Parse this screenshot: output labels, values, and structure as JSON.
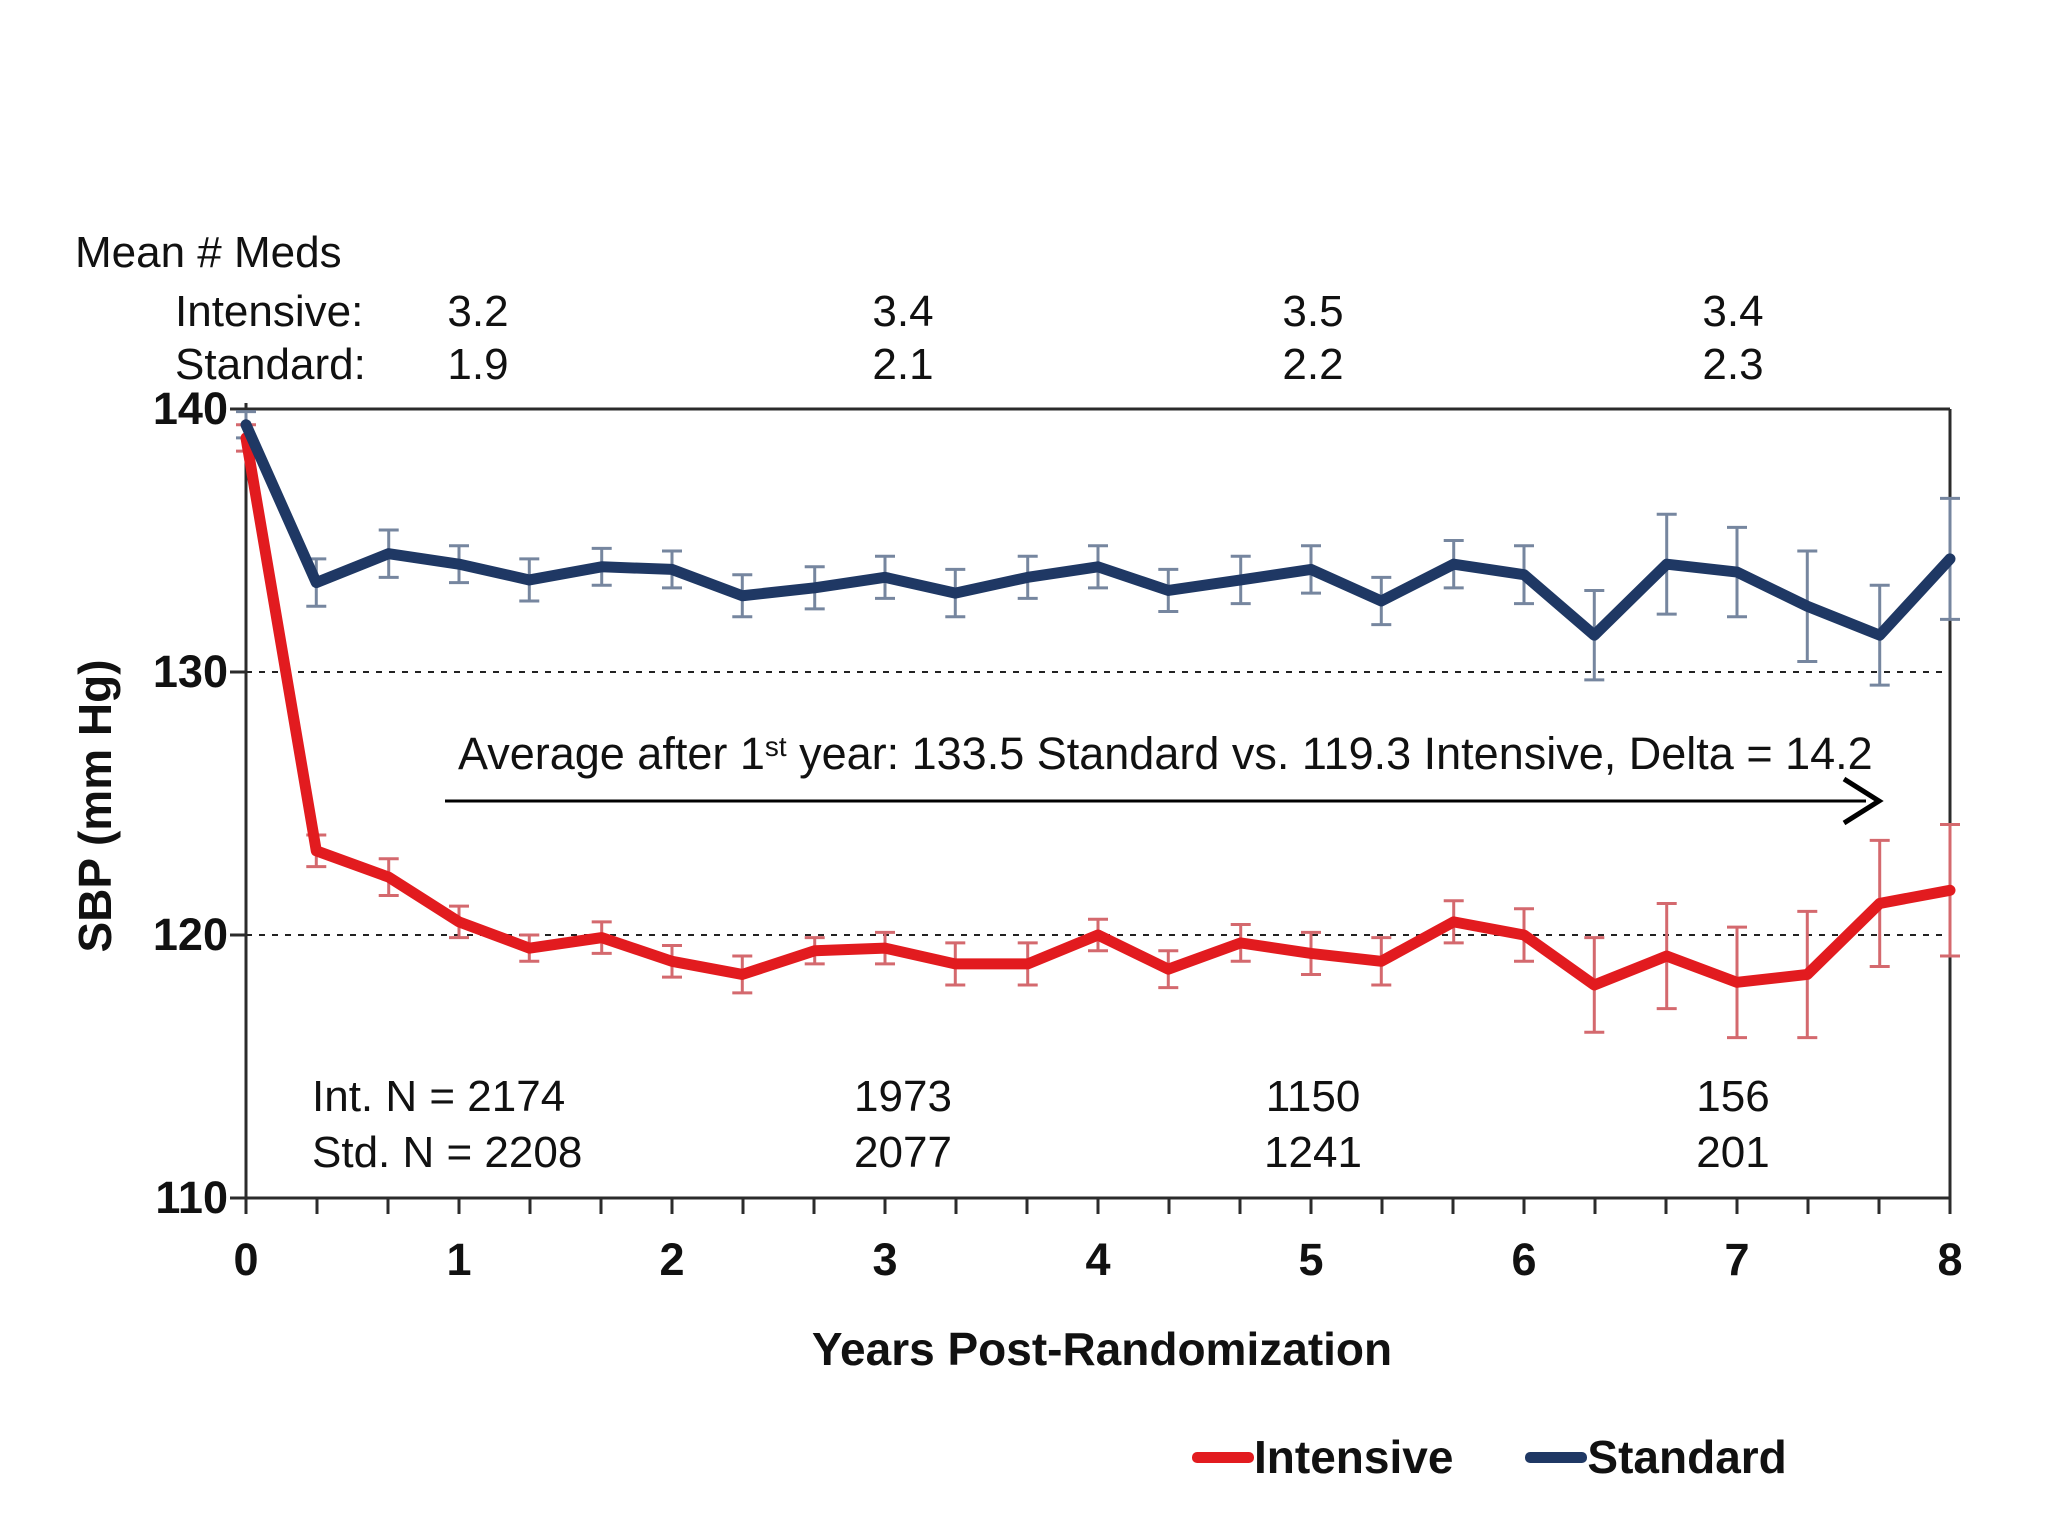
{
  "meds": {
    "title": "Mean # Meds",
    "rows": [
      {
        "label": "Intensive:",
        "values": [
          "3.2",
          "3.4",
          "3.5",
          "3.4"
        ]
      },
      {
        "label": "Standard:",
        "values": [
          "1.9",
          "2.1",
          "2.2",
          "2.3"
        ]
      }
    ]
  },
  "axes": {
    "y": {
      "label": "SBP (mm Hg)",
      "ticks": [
        "140",
        "130",
        "120",
        "110"
      ],
      "min": 110,
      "max": 140,
      "gridlines": [
        130,
        120
      ]
    },
    "x": {
      "label": "Years Post-Randomization",
      "ticks": [
        "0",
        "1",
        "2",
        "3",
        "4",
        "5",
        "6",
        "7",
        "8"
      ],
      "min": 0,
      "max": 8,
      "minor_per_year": 3
    }
  },
  "annotation": {
    "prefix": "Average after 1",
    "sup": "st",
    "suffix": " year: 133.5 Standard vs. 119.3 Intensive, Delta = 14.2"
  },
  "counts": {
    "rows": [
      {
        "label": "Int. N = 2174",
        "values": [
          "1973",
          "1150",
          "156"
        ]
      },
      {
        "label": "Std. N = 2208",
        "values": [
          "2077",
          "1241",
          "201"
        ]
      }
    ]
  },
  "legend": {
    "items": [
      {
        "label": "Intensive",
        "color": "#e21b1f"
      },
      {
        "label": "Standard",
        "color": "#1f3864"
      }
    ]
  },
  "colors": {
    "intensive_line": "#e21b1f",
    "standard_line": "#1f3864",
    "intensive_error": "#d4696e",
    "standard_error": "#77880",
    "axis": "#2b2b2b",
    "gridline": "#222222",
    "text": "#111111"
  },
  "chart_data": {
    "type": "line",
    "title": "",
    "xlabel": "Years Post-Randomization",
    "ylabel": "SBP (mm Hg)",
    "xlim": [
      0,
      8
    ],
    "ylim": [
      110,
      140
    ],
    "grid_y": [
      130,
      120
    ],
    "legend_position": "bottom-right",
    "x": [
      0,
      0.33,
      0.67,
      1,
      1.33,
      1.67,
      2,
      2.33,
      2.67,
      3,
      3.33,
      3.67,
      4,
      4.33,
      4.67,
      5,
      5.33,
      5.67,
      6,
      6.33,
      6.67,
      7,
      7.33,
      7.67,
      8
    ],
    "series": [
      {
        "name": "Intensive",
        "color": "#e21b1f",
        "err_color": "#d4696e",
        "values": [
          138.9,
          123.2,
          122.2,
          120.5,
          119.5,
          119.9,
          119.0,
          118.5,
          119.4,
          119.5,
          118.9,
          118.9,
          120.0,
          118.7,
          119.7,
          119.3,
          119.0,
          120.5,
          120.0,
          118.1,
          119.2,
          118.2,
          118.5,
          121.2,
          121.7
        ],
        "errors": [
          0.5,
          0.6,
          0.7,
          0.6,
          0.5,
          0.6,
          0.6,
          0.7,
          0.5,
          0.6,
          0.8,
          0.8,
          0.6,
          0.7,
          0.7,
          0.8,
          0.9,
          0.8,
          1.0,
          1.8,
          2.0,
          2.1,
          2.4,
          2.4,
          2.5
        ]
      },
      {
        "name": "Standard",
        "color": "#1f3864",
        "err_color": "#76869f",
        "values": [
          139.4,
          133.4,
          134.5,
          134.1,
          133.5,
          134.0,
          133.9,
          132.9,
          133.2,
          133.6,
          133.0,
          133.6,
          134.0,
          133.1,
          133.5,
          133.9,
          132.7,
          134.1,
          133.7,
          131.4,
          134.1,
          133.8,
          132.5,
          131.4,
          134.3
        ],
        "errors": [
          0.5,
          0.9,
          0.9,
          0.7,
          0.8,
          0.7,
          0.7,
          0.8,
          0.8,
          0.8,
          0.9,
          0.8,
          0.8,
          0.8,
          0.9,
          0.9,
          0.9,
          0.9,
          1.1,
          1.7,
          1.9,
          1.7,
          2.1,
          1.9,
          2.3
        ]
      }
    ],
    "annotations": [
      "Average after 1st year: 133.5 Standard vs. 119.3 Intensive, Delta = 14.2"
    ],
    "summary": {
      "standard_avg_after_year1": 133.5,
      "intensive_avg_after_year1": 119.3,
      "delta": 14.2
    }
  }
}
